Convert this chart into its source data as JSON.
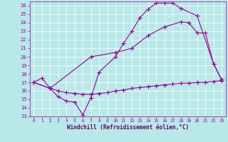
{
  "bg_color": "#b8e8e8",
  "line_color": "#990099",
  "grid_color": "#ffffff",
  "xlabel": "Windchill (Refroidissement éolien,°C)",
  "xlabel_color": "#660066",
  "ylim": [
    13,
    26.5
  ],
  "xlim": [
    -0.5,
    23.5
  ],
  "ytick_min": 13,
  "ytick_max": 26,
  "xtick_min": 0,
  "xtick_max": 23,
  "line1_x": [
    0,
    1,
    2,
    3,
    4,
    5,
    6,
    7,
    8,
    10,
    11,
    12,
    13,
    14,
    15,
    16,
    17,
    18,
    20,
    22,
    23
  ],
  "line1_y": [
    17.0,
    17.5,
    16.3,
    15.3,
    14.8,
    14.7,
    13.2,
    15.2,
    18.2,
    20.0,
    21.6,
    23.0,
    24.6,
    25.6,
    26.3,
    26.3,
    26.3,
    25.7,
    24.8,
    19.2,
    17.3
  ],
  "line2_x": [
    0,
    2,
    3,
    4,
    5,
    6,
    7,
    8,
    9,
    10,
    11,
    12,
    13,
    14,
    15,
    16,
    17,
    18,
    19,
    20,
    21,
    22,
    23
  ],
  "line2_y": [
    17.0,
    16.3,
    16.0,
    15.8,
    15.7,
    15.6,
    15.6,
    15.7,
    15.8,
    16.0,
    16.1,
    16.3,
    16.4,
    16.5,
    16.6,
    16.7,
    16.8,
    16.9,
    16.9,
    17.0,
    17.0,
    17.1,
    17.2
  ],
  "line3_x": [
    0,
    2,
    7,
    10,
    12,
    14,
    16,
    18,
    19,
    20,
    21,
    22,
    23
  ],
  "line3_y": [
    17.0,
    16.3,
    20.0,
    20.5,
    21.0,
    22.5,
    23.5,
    24.1,
    24.0,
    22.8,
    22.8,
    19.2,
    17.3
  ],
  "marker": "+",
  "marker_size": 4,
  "linewidth": 0.8
}
